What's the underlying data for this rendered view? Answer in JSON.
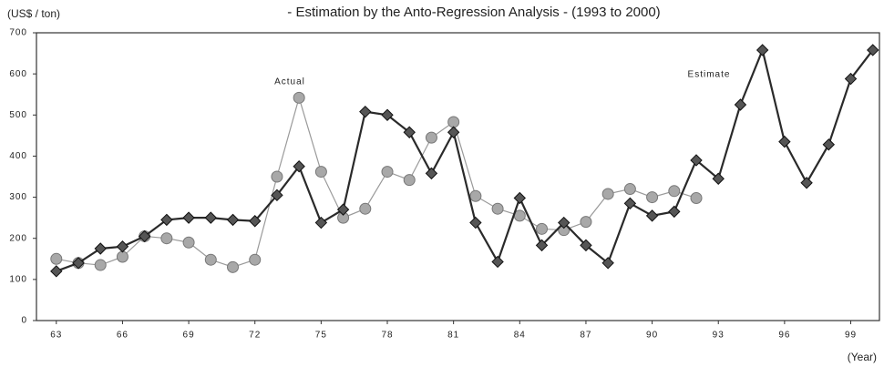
{
  "chart_data": {
    "type": "line",
    "title": "- Estimation by the Anto-Regression Analysis - (1993 to 2000)",
    "y_label": "(US$ / ton)",
    "x_label": "(Year)",
    "x": [
      63,
      64,
      65,
      66,
      67,
      68,
      69,
      70,
      71,
      72,
      73,
      74,
      75,
      76,
      77,
      78,
      79,
      80,
      81,
      82,
      83,
      84,
      85,
      86,
      87,
      88,
      89,
      90,
      91,
      92,
      93,
      94,
      95,
      96,
      97,
      98,
      99,
      100
    ],
    "series": [
      {
        "name": "Actual",
        "color": "#9a9a9a",
        "marker": "circle",
        "values": [
          150,
          140,
          135,
          155,
          205,
          200,
          190,
          148,
          130,
          148,
          350,
          542,
          362,
          250,
          272,
          362,
          342,
          445,
          483,
          303,
          272,
          255,
          223,
          220,
          240,
          308,
          320,
          300,
          315,
          298,
          null,
          null,
          null,
          null,
          null,
          null,
          null,
          null
        ]
      },
      {
        "name": "Estimate",
        "color": "#2a2a2a",
        "marker": "diamond",
        "values": [
          120,
          140,
          175,
          180,
          205,
          245,
          250,
          250,
          245,
          242,
          305,
          375,
          238,
          270,
          508,
          500,
          458,
          358,
          458,
          238,
          143,
          298,
          183,
          238,
          183,
          140,
          285,
          255,
          265,
          390,
          345,
          525,
          658,
          435,
          335,
          428,
          588,
          658
        ]
      }
    ],
    "xlim": [
      62.1,
      100.3
    ],
    "xticks": [
      63,
      66,
      69,
      72,
      75,
      78,
      81,
      84,
      87,
      90,
      93,
      96,
      99
    ],
    "ylim": [
      0,
      700
    ],
    "yticks": [
      0,
      100,
      200,
      300,
      400,
      500,
      600,
      700
    ],
    "grid": false
  }
}
